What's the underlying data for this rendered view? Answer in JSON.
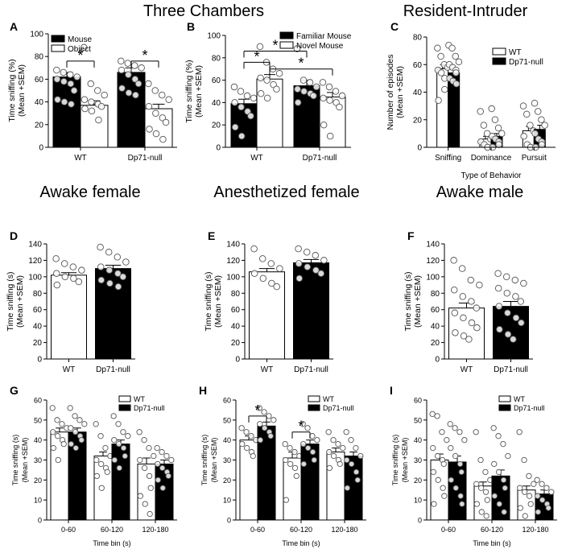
{
  "headers": {
    "row1": [
      "Three Chambers",
      "",
      "Resident-Intruder"
    ],
    "row2": [
      "Awake female",
      "Anesthetized female",
      "Awake male"
    ]
  },
  "chart_data": [
    {
      "id": "A",
      "label": "A",
      "type": "bar",
      "categories": [
        "WT",
        "Dp71-null"
      ],
      "ylabel": [
        "Time sniffing (%)",
        "(Mean +SEM)"
      ],
      "ylim": [
        0,
        100
      ],
      "yticks": [
        0,
        20,
        40,
        60,
        80,
        100
      ],
      "legend": {
        "position": "top-left"
      },
      "series": [
        {
          "name": "Mouse",
          "fill": "#000000",
          "values": [
            62,
            66
          ],
          "sem": [
            4,
            4
          ],
          "points": [
            [
              68,
              66,
              64,
              62,
              60,
              58,
              56,
              50,
              42,
              40,
              38
            ],
            [
              76,
              74,
              72,
              70,
              68,
              64,
              60,
              56,
              52,
              48,
              46
            ]
          ]
        },
        {
          "name": "Object",
          "fill": "#ffffff",
          "values": [
            37,
            34
          ],
          "sem": [
            4,
            4
          ],
          "points": [
            [
              88,
              56,
              50,
              46,
              42,
              40,
              38,
              36,
              34,
              32,
              24
            ],
            [
              56,
              50,
              46,
              42,
              36,
              30,
              26,
              22,
              16,
              12,
              7
            ]
          ]
        }
      ],
      "significance": [
        {
          "label": "*",
          "from": [
            0,
            0
          ],
          "to": [
            0,
            1
          ],
          "y": 76
        },
        {
          "label": "*",
          "from": [
            1,
            0
          ],
          "to": [
            1,
            1
          ],
          "y": 76
        }
      ]
    },
    {
      "id": "B",
      "label": "B",
      "type": "bar",
      "categories": [
        "WT",
        "Dp71-null"
      ],
      "ylabel": [
        "Time sniffing (%)",
        "(Mean +SEM)"
      ],
      "ylim": [
        0,
        100
      ],
      "yticks": [
        0,
        20,
        40,
        60,
        80,
        100
      ],
      "legend": {
        "position": "top-right"
      },
      "series": [
        {
          "name": "Familiar Mouse",
          "fill": "#000000",
          "values": [
            39,
            55
          ],
          "sem": [
            4,
            5
          ],
          "points": [
            [
              54,
              50,
              46,
              44,
              40,
              36,
              32,
              28,
              18,
              10
            ],
            [
              88,
              60,
              58,
              54,
              52,
              50,
              48,
              46,
              40
            ]
          ]
        },
        {
          "name": "Novel Mouse",
          "fill": "#ffffff",
          "values": [
            61,
            45
          ],
          "sem": [
            4,
            4
          ],
          "points": [
            [
              90,
              76,
              70,
              66,
              62,
              60,
              56,
              52,
              48,
              44
            ],
            [
              58,
              54,
              50,
              46,
              44,
              42,
              40,
              36,
              20,
              10
            ]
          ]
        }
      ],
      "significance": [
        {
          "label": "*",
          "from": [
            0,
            0
          ],
          "to": [
            0,
            1
          ],
          "y": 76
        },
        {
          "label": "*",
          "from": [
            0,
            1
          ],
          "to": [
            1,
            1
          ],
          "y": 70
        },
        {
          "label": "*",
          "from": [
            0,
            0
          ],
          "to": [
            1,
            0
          ],
          "y": 86
        }
      ]
    },
    {
      "id": "C",
      "label": "C",
      "type": "bar",
      "categories": [
        "Sniffing",
        "Dominance",
        "Pursuit"
      ],
      "xlabel": "Type of Behavior",
      "ylabel": [
        "Number of episodes",
        "(Mean +SEM)"
      ],
      "ylim": [
        0,
        80
      ],
      "yticks": [
        0,
        20,
        40,
        60,
        80
      ],
      "legend": {
        "position": "top-right"
      },
      "series": [
        {
          "name": "WT",
          "fill": "#ffffff",
          "values": [
            57,
            6,
            12
          ],
          "sem": [
            3,
            2,
            3
          ],
          "points": [
            [
              72,
              66,
              60,
              58,
              56,
              54,
              50,
              42,
              34
            ],
            [
              26,
              16,
              10,
              6,
              4,
              2,
              0,
              0
            ],
            [
              30,
              24,
              16,
              12,
              8,
              2,
              0,
              0
            ]
          ]
        },
        {
          "name": "Dp71-null",
          "fill": "#000000",
          "values": [
            54,
            8,
            13
          ],
          "sem": [
            3,
            2,
            3
          ],
          "points": [
            [
              74,
              72,
              66,
              62,
              60,
              58,
              56,
              54,
              50,
              48,
              46
            ],
            [
              28,
              20,
              14,
              10,
              8,
              6,
              4,
              2,
              0
            ],
            [
              32,
              26,
              20,
              16,
              10,
              6,
              4,
              2,
              0
            ]
          ]
        }
      ]
    },
    {
      "id": "D",
      "label": "D",
      "type": "bar",
      "categories": [
        "WT",
        "Dp71-null"
      ],
      "ylabel": [
        "Time sniffing (s)",
        "(Mean +SEM)"
      ],
      "ylim": [
        0,
        140
      ],
      "yticks": [
        0,
        20,
        40,
        60,
        80,
        100,
        120,
        140
      ],
      "series": [
        {
          "name": "",
          "fill": "#ffffff",
          "values": [
            102,
            110
          ],
          "sem": [
            3,
            4
          ],
          "points": [
            [
              122,
              116,
              112,
              108,
              104,
              100,
              98,
              94,
              90
            ],
            [
              136,
              130,
              124,
              118,
              112,
              108,
              104,
              100,
              96,
              92,
              88
            ]
          ]
        }
      ],
      "bar_fills": [
        "#ffffff",
        "#000000"
      ]
    },
    {
      "id": "E",
      "label": "E",
      "type": "bar",
      "categories": [
        "WT",
        "Dp71-null"
      ],
      "ylabel": [
        "Time sniffing (s)",
        "(Mean +SEM)"
      ],
      "ylim": [
        0,
        140
      ],
      "yticks": [
        0,
        20,
        40,
        60,
        80,
        100,
        120,
        140
      ],
      "series": [
        {
          "name": "",
          "fill": "#ffffff",
          "values": [
            106,
            117
          ],
          "sem": [
            4,
            4
          ],
          "points": [
            [
              134,
              122,
              116,
              110,
              104,
              98,
              92,
              88
            ],
            [
              134,
              130,
              126,
              120,
              116,
              112,
              108,
              104,
              98
            ]
          ]
        }
      ],
      "bar_fills": [
        "#ffffff",
        "#000000"
      ]
    },
    {
      "id": "F",
      "label": "F",
      "type": "bar",
      "categories": [
        "WT",
        "Dp71-null"
      ],
      "ylabel": [
        "Time sniffing (s)",
        "(Mean +SEM)"
      ],
      "ylim": [
        0,
        140
      ],
      "yticks": [
        0,
        20,
        40,
        60,
        80,
        100,
        120,
        140
      ],
      "series": [
        {
          "name": "",
          "fill": "#ffffff",
          "values": [
            62,
            64
          ],
          "sem": [
            6,
            6
          ],
          "points": [
            [
              120,
              110,
              96,
              90,
              84,
              76,
              70,
              62,
              56,
              50,
              44,
              38,
              32,
              28,
              24
            ],
            [
              104,
              100,
              96,
              92,
              86,
              80,
              76,
              70,
              64,
              56,
              50,
              44,
              36,
              30,
              24
            ]
          ]
        }
      ],
      "bar_fills": [
        "#ffffff",
        "#000000"
      ]
    },
    {
      "id": "G",
      "label": "G",
      "type": "bar",
      "categories": [
        "0-60",
        "60-120",
        "120-180"
      ],
      "xlabel": "Time bin (s)",
      "ylabel": [
        "Time sniffing (s)",
        "(Mean +SEM)"
      ],
      "ylim": [
        0,
        60
      ],
      "yticks": [
        0,
        10,
        20,
        30,
        40,
        50,
        60
      ],
      "legend": {
        "position": "top-right"
      },
      "series": [
        {
          "name": "WT",
          "fill": "#ffffff",
          "values": [
            44,
            32,
            28
          ],
          "sem": [
            2,
            2,
            3
          ],
          "points": [
            [
              56,
              50,
              48,
              46,
              44,
              42,
              40,
              38,
              36,
              30
            ],
            [
              48,
              42,
              36,
              32,
              30,
              28,
              26,
              24,
              22,
              16
            ],
            [
              44,
              40,
              36,
              32,
              30,
              26,
              22,
              16,
              12,
              8,
              3
            ]
          ]
        },
        {
          "name": "Dp71-null",
          "fill": "#000000",
          "values": [
            44,
            38,
            28
          ],
          "sem": [
            2,
            2,
            2
          ],
          "points": [
            [
              56,
              52,
              50,
              48,
              46,
              44,
              42,
              40,
              38,
              36
            ],
            [
              52,
              48,
              44,
              42,
              40,
              38,
              36,
              32,
              30,
              26
            ],
            [
              36,
              34,
              32,
              30,
              28,
              26,
              24,
              22,
              20,
              16
            ]
          ]
        }
      ]
    },
    {
      "id": "H",
      "label": "H",
      "type": "bar",
      "categories": [
        "0-60",
        "60-120",
        "120-180"
      ],
      "xlabel": "Time bin (s)",
      "ylabel": [
        "Time sniffing (s)",
        "(Mean +SEM)"
      ],
      "ylim": [
        0,
        60
      ],
      "yticks": [
        0,
        10,
        20,
        30,
        40,
        50,
        60
      ],
      "legend": {
        "position": "top-right"
      },
      "series": [
        {
          "name": "WT",
          "fill": "#ffffff",
          "values": [
            40,
            31,
            34
          ],
          "sem": [
            2,
            3,
            2
          ],
          "points": [
            [
              46,
              44,
              42,
              40,
              38,
              36,
              34,
              32
            ],
            [
              38,
              36,
              34,
              32,
              30,
              28,
              26,
              22,
              10
            ],
            [
              44,
              40,
              38,
              36,
              34,
              32,
              30,
              28,
              26
            ]
          ]
        },
        {
          "name": "Dp71-null",
          "fill": "#000000",
          "values": [
            47,
            38,
            32
          ],
          "sem": [
            2,
            2,
            2
          ],
          "points": [
            [
              56,
              54,
              52,
              50,
              48,
              46,
              44,
              42,
              40
            ],
            [
              48,
              46,
              42,
              40,
              38,
              36,
              34,
              30,
              28
            ],
            [
              44,
              40,
              36,
              32,
              30,
              28,
              24,
              20,
              16
            ]
          ]
        }
      ],
      "significance": [
        {
          "label": "*",
          "from": [
            0,
            0
          ],
          "to": [
            0,
            1
          ],
          "y": 52
        },
        {
          "label": "*",
          "from": [
            1,
            0
          ],
          "to": [
            1,
            1
          ],
          "y": 44
        }
      ]
    },
    {
      "id": "I",
      "label": "I",
      "type": "bar",
      "categories": [
        "0-60",
        "60-120",
        "120-180"
      ],
      "xlabel": "Time bin (s)",
      "ylabel": [
        "Time sniffing (s)",
        "(Mean +SEM)"
      ],
      "ylim": [
        0,
        60
      ],
      "yticks": [
        0,
        10,
        20,
        30,
        40,
        50,
        60
      ],
      "legend": {
        "position": "top-right"
      },
      "series": [
        {
          "name": "WT",
          "fill": "#ffffff",
          "values": [
            30,
            17,
            15
          ],
          "sem": [
            3,
            2,
            2
          ],
          "points": [
            [
              53,
              52,
              44,
              40,
              36,
              32,
              30,
              28,
              24,
              20,
              16,
              12,
              8
            ],
            [
              44,
              30,
              24,
              20,
              18,
              16,
              14,
              10,
              8,
              4,
              2
            ],
            [
              44,
              30,
              22,
              18,
              16,
              14,
              12,
              8,
              6,
              2
            ]
          ]
        },
        {
          "name": "Dp71-null",
          "fill": "#000000",
          "values": [
            29,
            22,
            13
          ],
          "sem": [
            3,
            3,
            2
          ],
          "points": [
            [
              48,
              46,
              44,
              40,
              36,
              32,
              28,
              24,
              20,
              16,
              12,
              8
            ],
            [
              46,
              42,
              38,
              32,
              28,
              24,
              20,
              16,
              12,
              8,
              4
            ],
            [
              20,
              18,
              16,
              14,
              12,
              10,
              8,
              6,
              4
            ]
          ]
        }
      ]
    }
  ]
}
